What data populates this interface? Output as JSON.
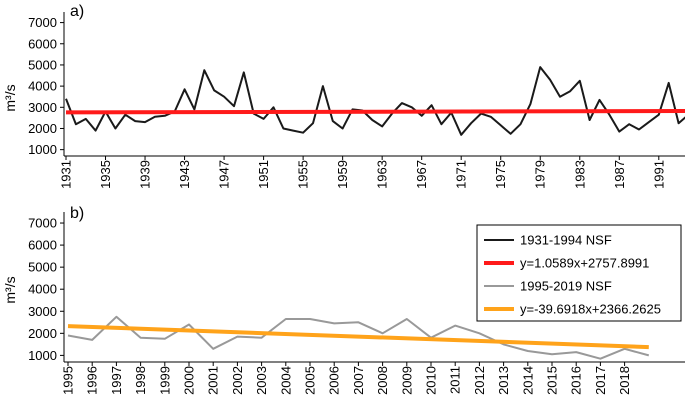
{
  "chart_data": [
    {
      "type": "line",
      "panel_label": "a)",
      "ylabel": "m³/s",
      "xlabel": "",
      "ylim": [
        700,
        7500
      ],
      "yticks": [
        "1000",
        "2000",
        "3000",
        "4000",
        "5000",
        "6000",
        "7000"
      ],
      "xlim": [
        1931,
        1994
      ],
      "xticks": [
        "1931",
        "1935",
        "1939",
        "1943",
        "1947",
        "1951",
        "1955",
        "1959",
        "1963",
        "1967",
        "1971",
        "1975",
        "1979",
        "1983",
        "1987",
        "1991"
      ],
      "grid": false,
      "series": [
        {
          "name": "1931-1994 NSF",
          "color": "#1a1a1a",
          "x": [
            1931,
            1932,
            1933,
            1934,
            1935,
            1936,
            1937,
            1938,
            1939,
            1940,
            1941,
            1942,
            1943,
            1944,
            1945,
            1946,
            1947,
            1948,
            1949,
            1950,
            1951,
            1952,
            1953,
            1954,
            1955,
            1956,
            1957,
            1958,
            1959,
            1960,
            1961,
            1962,
            1963,
            1964,
            1965,
            1966,
            1967,
            1968,
            1969,
            1970,
            1971,
            1972,
            1973,
            1974,
            1975,
            1976,
            1977,
            1978,
            1979,
            1980,
            1981,
            1982,
            1983,
            1984,
            1985,
            1986,
            1987,
            1988,
            1989,
            1990,
            1991,
            1992,
            1993,
            1994
          ],
          "values": [
            3400,
            2200,
            2450,
            1900,
            2800,
            2000,
            2650,
            2350,
            2300,
            2550,
            2600,
            2800,
            3850,
            2900,
            4750,
            3800,
            3500,
            3050,
            4650,
            2700,
            2450,
            3000,
            2000,
            1900,
            1800,
            2250,
            4000,
            2350,
            2000,
            2900,
            2850,
            2400,
            2100,
            2700,
            3200,
            3000,
            2600,
            3100,
            2200,
            2750,
            1700,
            2250,
            2700,
            2550,
            2150,
            1750,
            2200,
            3150,
            4900,
            4300,
            3500,
            3750,
            4250,
            2400,
            3350,
            2650,
            1850,
            2200,
            1950,
            2300,
            2650,
            4150,
            2250,
            2650
          ]
        },
        {
          "name": "y=1.0589x+2757.8991",
          "color": "#ff1a1a",
          "x": [
            1931,
            1994
          ],
          "values": [
            2758.9,
            2825.6
          ]
        }
      ]
    },
    {
      "type": "line",
      "panel_label": "b)",
      "ylabel": "m³/s",
      "xlabel": "",
      "ylim": [
        700,
        7500
      ],
      "yticks": [
        "1000",
        "2000",
        "3000",
        "4000",
        "5000",
        "6000",
        "7000"
      ],
      "xlim": [
        1995,
        2019
      ],
      "xticks": [
        "1995",
        "1996",
        "1997",
        "1998",
        "1999",
        "2000",
        "2001",
        "2002",
        "2003",
        "2004",
        "2005",
        "2006",
        "2007",
        "2008",
        "2009",
        "2010",
        "2011",
        "2012",
        "2013",
        "2014",
        "2015",
        "2016",
        "2017",
        "2018"
      ],
      "grid": false,
      "series": [
        {
          "name": "1995-2019 NSF",
          "color": "#999999",
          "x": [
            1995,
            1996,
            1997,
            1998,
            1999,
            2000,
            2001,
            2002,
            2003,
            2004,
            2005,
            2006,
            2007,
            2008,
            2009,
            2010,
            2011,
            2012,
            2013,
            2014,
            2015,
            2016,
            2017,
            2018,
            2019
          ],
          "values": [
            1900,
            1700,
            2750,
            1800,
            1750,
            2400,
            1300,
            1850,
            1800,
            2650,
            2650,
            2450,
            2500,
            2000,
            2650,
            1800,
            2350,
            2000,
            1500,
            1200,
            1050,
            1150,
            850,
            1300,
            1000
          ]
        },
        {
          "name": "y=-39.6918x+2366.2625",
          "color": "#ffa31a",
          "x": [
            1995,
            2019
          ],
          "values": [
            2326.6,
            1373.9
          ]
        }
      ],
      "legend": {
        "placement": "right",
        "entries": [
          {
            "label": "1931-1994 NSF",
            "color": "#1a1a1a"
          },
          {
            "label": "y=1.0589x+2757.8991",
            "color": "#ff1a1a"
          },
          {
            "label": "1995-2019 NSF",
            "color": "#999999"
          },
          {
            "label": "y=-39.6918x+2366.2625",
            "color": "#ffa31a"
          }
        ]
      }
    }
  ]
}
